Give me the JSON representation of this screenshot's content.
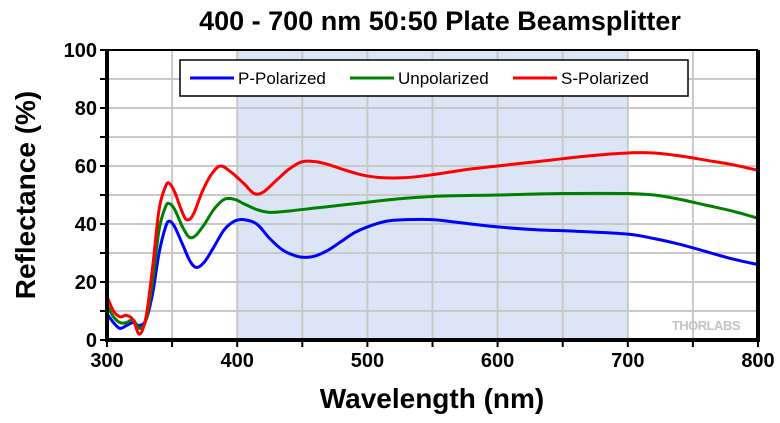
{
  "chart_data": {
    "type": "line",
    "title": "400 - 700 nm 50:50 Plate Beamsplitter",
    "xlabel": "Wavelength (nm)",
    "ylabel": "Reflectance (%)",
    "xlim": [
      300,
      800
    ],
    "ylim": [
      0,
      100
    ],
    "xticks": [
      300,
      400,
      500,
      600,
      700,
      800
    ],
    "yticks": [
      0,
      20,
      40,
      60,
      80,
      100
    ],
    "grid": true,
    "legend_position": "top-center",
    "highlight_band": {
      "from": 400,
      "to": 700,
      "color": "#dce5f6"
    },
    "watermark": "THORLABS",
    "series": [
      {
        "name": "P-Polarized",
        "color": "#0000ff",
        "points": [
          [
            300,
            9
          ],
          [
            305,
            6
          ],
          [
            310,
            4
          ],
          [
            315,
            5
          ],
          [
            320,
            6
          ],
          [
            325,
            5
          ],
          [
            330,
            7
          ],
          [
            335,
            16
          ],
          [
            340,
            30
          ],
          [
            345,
            39
          ],
          [
            348,
            41
          ],
          [
            352,
            39
          ],
          [
            358,
            33
          ],
          [
            364,
            27
          ],
          [
            369,
            25
          ],
          [
            375,
            27
          ],
          [
            382,
            32
          ],
          [
            390,
            38
          ],
          [
            398,
            41
          ],
          [
            405,
            41.5
          ],
          [
            415,
            40
          ],
          [
            425,
            35
          ],
          [
            435,
            31
          ],
          [
            445,
            29
          ],
          [
            452,
            28.5
          ],
          [
            460,
            29
          ],
          [
            470,
            31
          ],
          [
            480,
            34
          ],
          [
            490,
            37
          ],
          [
            500,
            39
          ],
          [
            515,
            41
          ],
          [
            530,
            41.5
          ],
          [
            550,
            41.5
          ],
          [
            570,
            40.5
          ],
          [
            600,
            39
          ],
          [
            630,
            38
          ],
          [
            660,
            37.5
          ],
          [
            700,
            36.5
          ],
          [
            720,
            35
          ],
          [
            740,
            33
          ],
          [
            760,
            30.5
          ],
          [
            780,
            28
          ],
          [
            800,
            26
          ]
        ]
      },
      {
        "name": "Unpolarized",
        "color": "#008000",
        "points": [
          [
            300,
            12
          ],
          [
            305,
            8
          ],
          [
            310,
            6
          ],
          [
            315,
            6
          ],
          [
            320,
            7
          ],
          [
            325,
            4
          ],
          [
            330,
            7
          ],
          [
            335,
            20
          ],
          [
            340,
            38
          ],
          [
            345,
            46
          ],
          [
            348,
            47
          ],
          [
            352,
            45
          ],
          [
            358,
            39
          ],
          [
            363,
            35.5
          ],
          [
            368,
            36
          ],
          [
            375,
            40
          ],
          [
            382,
            45
          ],
          [
            390,
            48.5
          ],
          [
            398,
            48.5
          ],
          [
            405,
            47
          ],
          [
            415,
            45
          ],
          [
            425,
            44
          ],
          [
            440,
            44.5
          ],
          [
            460,
            45.5
          ],
          [
            480,
            46.5
          ],
          [
            500,
            47.5
          ],
          [
            520,
            48.5
          ],
          [
            550,
            49.5
          ],
          [
            600,
            50
          ],
          [
            650,
            50.5
          ],
          [
            700,
            50.5
          ],
          [
            720,
            50
          ],
          [
            740,
            48.5
          ],
          [
            760,
            46.5
          ],
          [
            780,
            44.5
          ],
          [
            800,
            42
          ]
        ]
      },
      {
        "name": "S-Polarized",
        "color": "#ff0000",
        "points": [
          [
            300,
            15
          ],
          [
            305,
            10
          ],
          [
            310,
            8
          ],
          [
            315,
            8.5
          ],
          [
            320,
            7
          ],
          [
            325,
            2
          ],
          [
            330,
            8
          ],
          [
            335,
            25
          ],
          [
            340,
            45
          ],
          [
            345,
            53
          ],
          [
            348,
            54
          ],
          [
            352,
            51
          ],
          [
            357,
            45
          ],
          [
            361,
            41.5
          ],
          [
            366,
            43
          ],
          [
            373,
            51
          ],
          [
            380,
            57
          ],
          [
            387,
            60
          ],
          [
            395,
            58
          ],
          [
            405,
            54
          ],
          [
            413,
            50.5
          ],
          [
            420,
            51
          ],
          [
            430,
            55
          ],
          [
            440,
            59
          ],
          [
            450,
            61.5
          ],
          [
            460,
            61.5
          ],
          [
            470,
            60.5
          ],
          [
            480,
            59
          ],
          [
            495,
            57
          ],
          [
            510,
            56
          ],
          [
            530,
            56
          ],
          [
            550,
            57
          ],
          [
            580,
            59
          ],
          [
            610,
            60.5
          ],
          [
            640,
            62
          ],
          [
            670,
            63.5
          ],
          [
            700,
            64.5
          ],
          [
            720,
            64.5
          ],
          [
            740,
            63.5
          ],
          [
            760,
            62
          ],
          [
            780,
            60.5
          ],
          [
            800,
            58.5
          ]
        ]
      }
    ]
  }
}
